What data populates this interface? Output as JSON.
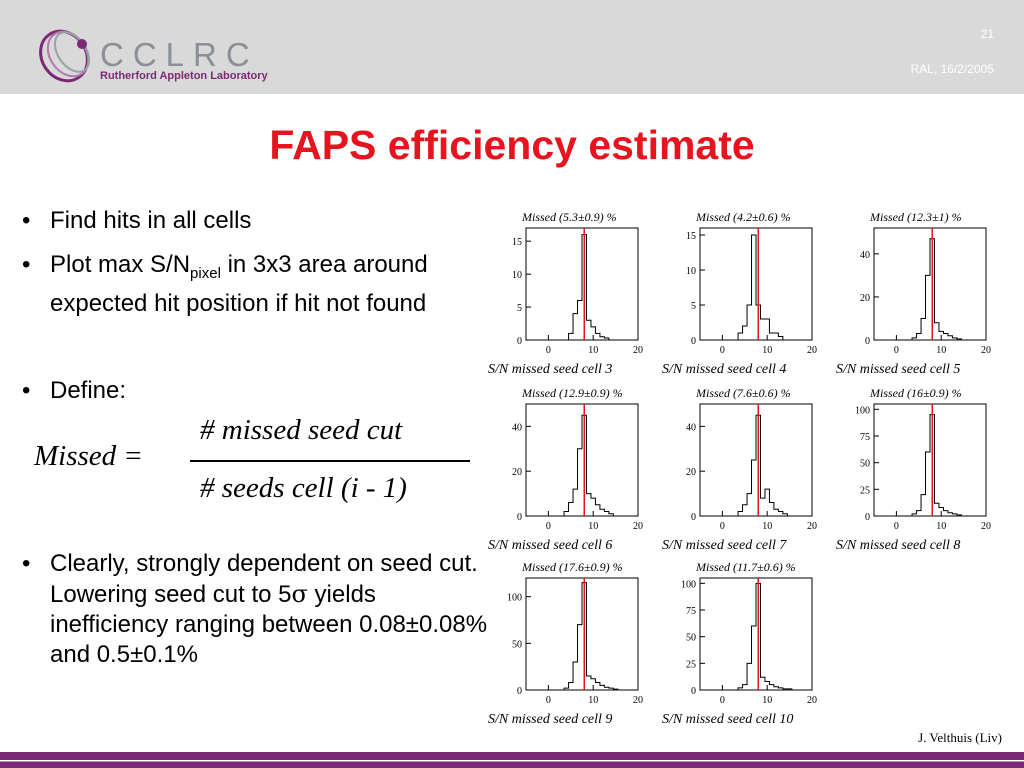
{
  "header": {
    "logo_name": "CCLRC",
    "logo_sub": "Rutherford Appleton Laboratory",
    "slide_number": "21",
    "date": "RAL, 16/2/2005"
  },
  "title": "FAPS efficiency estimate",
  "bullets": {
    "b1": "Find hits in all cells",
    "b2_main": "Plot max S/N",
    "b2_sub": "pixel",
    "b2_rest": " in 3x3 area around expected hit position if hit not found",
    "b3": "Define:",
    "b4_pre": "Clearly, strongly dependent on seed cut. Lowering seed cut to 5",
    "b4_sigma": "σ",
    "b4_post": " yields inefficiency ranging between 0.08±0.08% and 0.5±0.1%"
  },
  "formula": {
    "lhs": "Missed =",
    "numerator": "# missed seed cut",
    "denominator": "# seeds cell (i - 1)"
  },
  "chart_data": [
    {
      "type": "bar",
      "title": "Missed (5.3±0.9) %",
      "xlabel": "S/N missed seed cell 3",
      "xlim": [
        -5,
        20
      ],
      "ylim": [
        0,
        17
      ],
      "yticks": [
        0,
        5,
        10,
        15
      ],
      "xticks": [
        0,
        10,
        20
      ],
      "cut": 8,
      "x": [
        5,
        6,
        7,
        8,
        9,
        10,
        11,
        12,
        13
      ],
      "values": [
        1,
        4,
        6,
        16,
        3,
        2,
        1,
        0.5,
        0.3
      ]
    },
    {
      "type": "bar",
      "title": "Missed (4.2±0.6) %",
      "xlabel": "S/N missed seed cell 4",
      "xlim": [
        -5,
        20
      ],
      "ylim": [
        0,
        16
      ],
      "yticks": [
        0,
        5,
        10,
        15
      ],
      "xticks": [
        0,
        10,
        20
      ],
      "cut": 8,
      "x": [
        4,
        5,
        6,
        7,
        8,
        9,
        10,
        11,
        12,
        13
      ],
      "values": [
        1,
        2,
        5,
        15,
        5,
        3,
        3,
        1,
        1,
        0.5
      ]
    },
    {
      "type": "bar",
      "title": "Missed (12.3±1) %",
      "xlabel": "S/N missed seed cell 5",
      "xlim": [
        -5,
        20
      ],
      "ylim": [
        0,
        52
      ],
      "yticks": [
        0,
        20,
        40
      ],
      "xticks": [
        0,
        10,
        20
      ],
      "cut": 8,
      "x": [
        4,
        5,
        6,
        7,
        8,
        9,
        10,
        11,
        12,
        13,
        14
      ],
      "values": [
        1,
        3,
        10,
        30,
        47,
        8,
        4,
        3,
        2,
        1,
        0.5
      ]
    },
    {
      "type": "bar",
      "title": "Missed (12.9±0.9) %",
      "xlabel": "S/N missed seed cell 6",
      "xlim": [
        -5,
        20
      ],
      "ylim": [
        0,
        50
      ],
      "yticks": [
        0,
        20,
        40
      ],
      "xticks": [
        0,
        10,
        20
      ],
      "cut": 8,
      "x": [
        4,
        5,
        6,
        7,
        8,
        9,
        10,
        11,
        12,
        13,
        14
      ],
      "values": [
        2,
        6,
        12,
        30,
        45,
        10,
        8,
        5,
        3,
        2,
        1
      ]
    },
    {
      "type": "bar",
      "title": "Missed (7.6±0.6) %",
      "xlabel": "S/N missed seed cell 7",
      "xlim": [
        -5,
        20
      ],
      "ylim": [
        0,
        50
      ],
      "yticks": [
        0,
        20,
        40
      ],
      "xticks": [
        0,
        10,
        20
      ],
      "cut": 8,
      "x": [
        4,
        5,
        6,
        7,
        8,
        9,
        10,
        11,
        12,
        13,
        14
      ],
      "values": [
        2,
        5,
        10,
        25,
        45,
        8,
        12,
        6,
        3,
        2,
        1
      ]
    },
    {
      "type": "bar",
      "title": "Missed (16±0.9) %",
      "xlabel": "S/N missed seed cell 8",
      "xlim": [
        -5,
        20
      ],
      "ylim": [
        0,
        105
      ],
      "yticks": [
        0,
        25,
        50,
        75,
        100
      ],
      "xticks": [
        0,
        10,
        20
      ],
      "cut": 8,
      "x": [
        4,
        5,
        6,
        7,
        8,
        9,
        10,
        11,
        12,
        13,
        14
      ],
      "values": [
        2,
        5,
        20,
        60,
        95,
        12,
        8,
        5,
        3,
        2,
        1
      ]
    },
    {
      "type": "bar",
      "title": "Missed (17.6±0.9) %",
      "xlabel": "S/N missed seed cell 9",
      "xlim": [
        -5,
        20
      ],
      "ylim": [
        0,
        120
      ],
      "yticks": [
        0,
        50,
        100
      ],
      "xticks": [
        0,
        10,
        20
      ],
      "cut": 8,
      "x": [
        4,
        5,
        6,
        7,
        8,
        9,
        10,
        11,
        12,
        13,
        14,
        15
      ],
      "values": [
        2,
        8,
        30,
        70,
        115,
        15,
        12,
        8,
        5,
        3,
        2,
        1
      ]
    },
    {
      "type": "bar",
      "title": "Missed (11.7±0.6) %",
      "xlabel": "S/N missed seed cell 10",
      "xlim": [
        -5,
        20
      ],
      "ylim": [
        0,
        105
      ],
      "yticks": [
        0,
        25,
        50,
        75,
        100
      ],
      "xticks": [
        0,
        10,
        20
      ],
      "cut": 8,
      "x": [
        4,
        5,
        6,
        7,
        8,
        9,
        10,
        11,
        12,
        13,
        14,
        15
      ],
      "values": [
        2,
        5,
        25,
        60,
        100,
        12,
        8,
        5,
        3,
        2,
        1,
        1
      ]
    }
  ],
  "footer": {
    "author": "J. Velthuis (Liv)"
  }
}
